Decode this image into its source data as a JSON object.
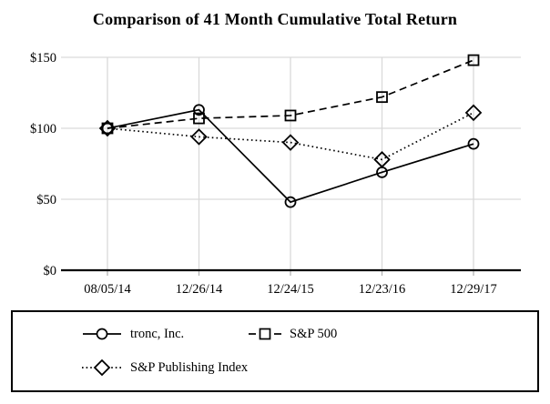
{
  "chart_data": {
    "type": "line",
    "title": "Comparison of 41 Month Cumulative Total Return",
    "categories": [
      "08/05/14",
      "12/26/14",
      "12/24/15",
      "12/23/16",
      "12/29/17"
    ],
    "series": [
      {
        "name": "tronc, Inc.",
        "marker": "circle",
        "line_style": "solid",
        "values": [
          100,
          113,
          48,
          69,
          89
        ]
      },
      {
        "name": "S&P 500",
        "marker": "square",
        "line_style": "dashed",
        "values": [
          100,
          107,
          109,
          122,
          148
        ]
      },
      {
        "name": "S&P Publishing Index",
        "marker": "diamond",
        "line_style": "dotted",
        "values": [
          100,
          94,
          90,
          78,
          111
        ]
      }
    ],
    "xlabel": "",
    "ylabel": "",
    "y_axis": {
      "ticks": [
        0,
        50,
        100,
        150
      ],
      "tick_labels": [
        "$0",
        "$50",
        "$100",
        "$150"
      ],
      "ylim": [
        0,
        150
      ],
      "unit": "USD"
    },
    "grid": true,
    "legend_position": "bottom",
    "colors": {
      "line": "#000000",
      "grid": "#d9d9d9",
      "tick": "#b5b5b5",
      "background": "#ffffff",
      "text": "#000000"
    }
  }
}
